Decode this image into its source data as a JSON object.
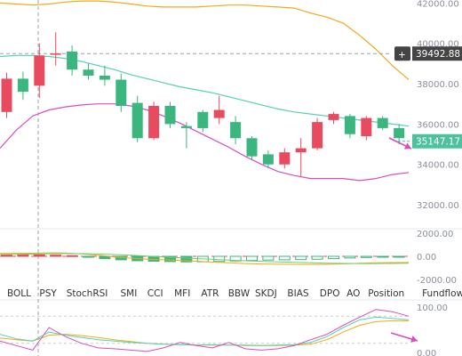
{
  "chart_data": {
    "type": "candlestick",
    "main": {
      "y_ticks": [
        {
          "value": 42000,
          "label": "42000.00"
        },
        {
          "value": 40000,
          "label": "40000.00"
        },
        {
          "value": 38000,
          "label": "38000.00"
        },
        {
          "value": 36000,
          "label": "36000.00"
        },
        {
          "value": 34000,
          "label": "34000.00"
        },
        {
          "value": 32000,
          "label": "32000.00"
        }
      ],
      "ylim": [
        30900,
        42150
      ],
      "candles": [
        {
          "open": 36600,
          "close": 38250,
          "high": 38550,
          "low": 36300
        },
        {
          "open": 38250,
          "close": 37600,
          "high": 38600,
          "low": 37200
        },
        {
          "open": 37900,
          "close": 39400,
          "high": 40000,
          "low": 37300
        },
        {
          "open": 39450,
          "close": 39500,
          "high": 40550,
          "low": 38900
        },
        {
          "open": 39600,
          "close": 38700,
          "high": 39900,
          "low": 38400
        },
        {
          "open": 38700,
          "close": 38400,
          "high": 39000,
          "low": 38200
        },
        {
          "open": 38400,
          "close": 38200,
          "high": 38900,
          "low": 37900
        },
        {
          "open": 38200,
          "close": 36900,
          "high": 38500,
          "low": 36600
        },
        {
          "open": 37050,
          "close": 35300,
          "high": 37400,
          "low": 35100
        },
        {
          "open": 35300,
          "close": 36900,
          "high": 37100,
          "low": 35200
        },
        {
          "open": 36900,
          "close": 36000,
          "high": 37100,
          "low": 35800
        },
        {
          "open": 35900,
          "close": 35800,
          "high": 36100,
          "low": 34800
        },
        {
          "open": 36600,
          "close": 35800,
          "high": 36700,
          "low": 35600
        },
        {
          "open": 36300,
          "close": 36700,
          "high": 37400,
          "low": 36000
        },
        {
          "open": 36100,
          "close": 35300,
          "high": 36400,
          "low": 35000
        },
        {
          "open": 35300,
          "close": 34400,
          "high": 35400,
          "low": 34200
        },
        {
          "open": 34500,
          "close": 34000,
          "high": 34700,
          "low": 33800
        },
        {
          "open": 34000,
          "close": 34600,
          "high": 34800,
          "low": 33800
        },
        {
          "open": 34600,
          "close": 34800,
          "high": 35300,
          "low": 33400
        },
        {
          "open": 34800,
          "close": 36100,
          "high": 36300,
          "low": 34700
        },
        {
          "open": 36200,
          "close": 36500,
          "high": 36600,
          "low": 36000
        },
        {
          "open": 36400,
          "close": 35500,
          "high": 36500,
          "low": 35300
        },
        {
          "open": 35400,
          "close": 36300,
          "high": 36400,
          "low": 35200
        },
        {
          "open": 36300,
          "close": 35800,
          "high": 36400,
          "low": 35700
        },
        {
          "open": 35800,
          "close": 35300,
          "high": 36000,
          "low": 35000
        }
      ],
      "boll_upper": [
        42000,
        41950,
        41900,
        41950,
        42050,
        42100,
        42100,
        42050,
        41950,
        41850,
        41800,
        41800,
        41800,
        41850,
        41900,
        41900,
        41850,
        41800,
        41750,
        41500,
        41300,
        41000,
        40400,
        39700,
        38900,
        38200
      ],
      "boll_middle": [
        39350,
        39400,
        39400,
        39350,
        39250,
        39100,
        38900,
        38700,
        38450,
        38250,
        38050,
        37850,
        37700,
        37550,
        37350,
        37150,
        36950,
        36750,
        36600,
        36500,
        36400,
        36300,
        36200,
        36100,
        36000,
        35900
      ],
      "boll_lower": [
        34800,
        35700,
        36400,
        36700,
        36850,
        36950,
        37000,
        37000,
        36900,
        36700,
        36400,
        36050,
        35650,
        35250,
        34850,
        34400,
        34000,
        33650,
        33450,
        33300,
        33300,
        33300,
        33200,
        33300,
        33500,
        33600
      ],
      "last_price": 35147.17,
      "last_price_label": "35147.17",
      "crosshair_price": 39492.88,
      "crosshair_label": "39492.88",
      "crosshair_plus": "+"
    },
    "macd": {
      "y_ticks": [
        {
          "value": 2000,
          "label": "2000.00"
        },
        {
          "value": 0,
          "label": "0.00"
        },
        {
          "value": -2000,
          "label": "-2000.00"
        }
      ],
      "ylim": [
        -2300,
        2300
      ],
      "histogram": [
        120,
        140,
        130,
        100,
        60,
        -80,
        -200,
        -300,
        -380,
        -420,
        -450,
        -480,
        -470,
        -440,
        -400,
        -360,
        -320,
        -300,
        -280,
        -250,
        -200,
        -140,
        -100,
        -60,
        -20
      ],
      "dif": [
        250,
        260,
        270,
        300,
        280,
        200,
        100,
        -50,
        -150,
        -250,
        -300,
        -350,
        -420,
        -500,
        -560,
        -620,
        -660,
        -680,
        -690,
        -700,
        -690,
        -650,
        -600,
        -560,
        -540,
        -530
      ],
      "dea": [
        150,
        170,
        190,
        220,
        240,
        230,
        200,
        150,
        90,
        20,
        -50,
        -120,
        -190,
        -260,
        -320,
        -380,
        -430,
        -480,
        -520,
        -560,
        -590,
        -610,
        -620,
        -620,
        -610,
        -600
      ]
    },
    "kdj": {
      "y_ticks": [
        {
          "value": 100,
          "label": "100.00"
        },
        {
          "value": 0,
          "label": "0.00"
        }
      ],
      "ylim": [
        -8,
        118
      ],
      "k": [
        40,
        30,
        25,
        45,
        38,
        33,
        28,
        25,
        22,
        20,
        18,
        17,
        16,
        17,
        16,
        16,
        15,
        16,
        17,
        22,
        35,
        55,
        72,
        78,
        75,
        72
      ],
      "d": [
        32,
        28,
        25,
        38,
        40,
        37,
        33,
        28,
        24,
        20,
        18,
        17,
        16,
        16,
        16,
        15,
        15,
        15,
        16,
        18,
        28,
        45,
        60,
        68,
        70,
        70
      ],
      "j": [
        25,
        15,
        5,
        55,
        35,
        20,
        10,
        8,
        5,
        2,
        10,
        22,
        15,
        10,
        22,
        8,
        5,
        8,
        15,
        28,
        40,
        60,
        78,
        95,
        90,
        80
      ]
    },
    "indicators": [
      "BOLL",
      "PSY",
      "StochRSI",
      "SMI",
      "CCI",
      "MFI",
      "ATR",
      "BBW",
      "SKDJ",
      "BIAS",
      "DPO",
      "AO",
      "Position",
      "Fundflow"
    ],
    "colors": {
      "up": "#e84a5f",
      "down": "#3cb67f",
      "boll_upper": "#f0a91c",
      "boll_middle": "#55d1b0",
      "boll_lower": "#d64fc1",
      "price_tag": "#4dc19e",
      "crosshair_tag": "#444444",
      "arrow": "#d64fc1"
    }
  }
}
